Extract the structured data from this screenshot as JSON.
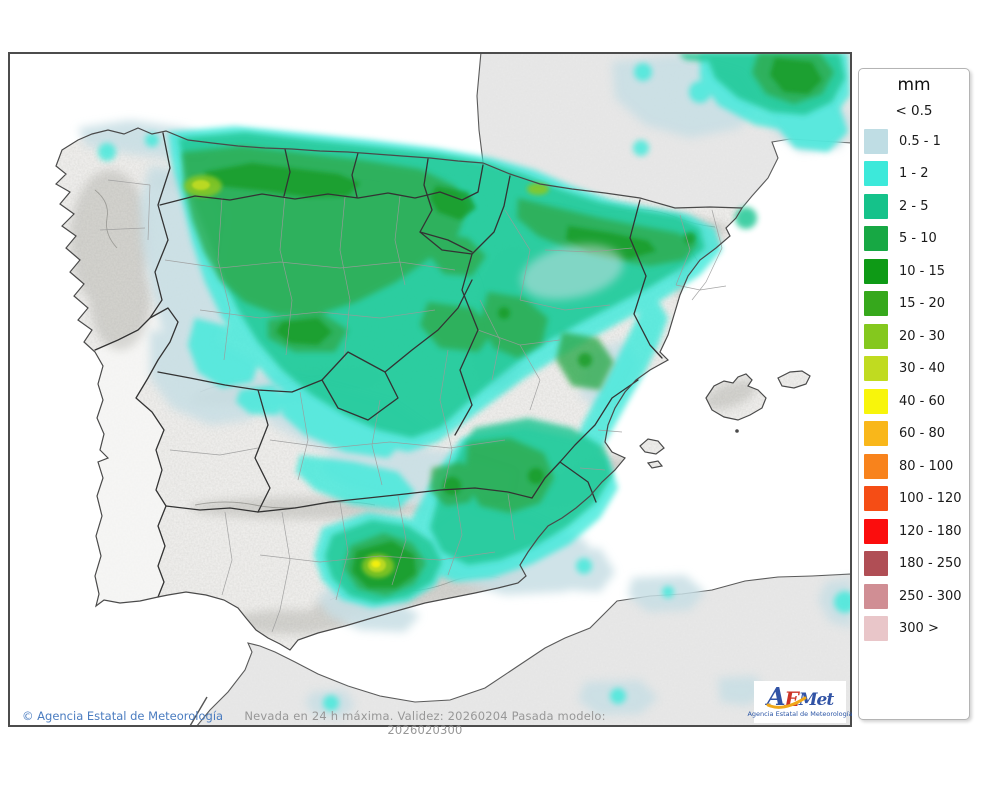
{
  "legend": {
    "title": "mm",
    "below_threshold_label": "< 0.5",
    "items": [
      {
        "label": "0.5 - 1",
        "color": "#bfdde4"
      },
      {
        "label": "1 - 2",
        "color": "#3ce9da"
      },
      {
        "label": "2 - 5",
        "color": "#15c28a"
      },
      {
        "label": "5 - 10",
        "color": "#17a844"
      },
      {
        "label": "10 - 15",
        "color": "#0e9a16"
      },
      {
        "label": "15 - 20",
        "color": "#36a81c"
      },
      {
        "label": "20 - 30",
        "color": "#84c81e"
      },
      {
        "label": "30 - 40",
        "color": "#c0db20"
      },
      {
        "label": "40 - 60",
        "color": "#f8f50b"
      },
      {
        "label": "60 - 80",
        "color": "#f9b71a"
      },
      {
        "label": "80 - 100",
        "color": "#f8831c"
      },
      {
        "label": "100 - 120",
        "color": "#f54d15"
      },
      {
        "label": "120 - 180",
        "color": "#fb0d0d"
      },
      {
        "label": "180 - 250",
        "color": "#b04e55"
      },
      {
        "label": "250 - 300",
        "color": "#d08e94"
      },
      {
        "label": "300 >",
        "color": "#e9c6c9"
      }
    ]
  },
  "footer": {
    "copyright": "© Agencia Estatal de Meteorología",
    "model_info": "Nevada en 24 h máxima. Validez: 20260204 Pasada modelo: 2026020300"
  },
  "logo": {
    "part_a": "A",
    "part_e": "E",
    "part_met": "Met",
    "subtitle": "Agencia Estatal de Meteorología",
    "blue": "#3153a5",
    "red": "#cc3327",
    "yellow": "#f0a818"
  },
  "palette": {
    "sea": "#ffffff",
    "foreign_land": "#e9e9e9",
    "spain_land": "#f4f3f1",
    "portugal_land": "#f8f8f6",
    "frame_border": "#4c4c4c",
    "community_border": "#333333",
    "province_border": "#9b9b9b",
    "p05_1": "#c7dee4",
    "p1_2": "#3ce9da",
    "p2_5": "#24c795",
    "p5_10": "#2faa4d",
    "p10_15": "#169a24",
    "p20_30": "#8cc821",
    "p30_40": "#c0db20",
    "p40_60": "#f5f00f"
  }
}
